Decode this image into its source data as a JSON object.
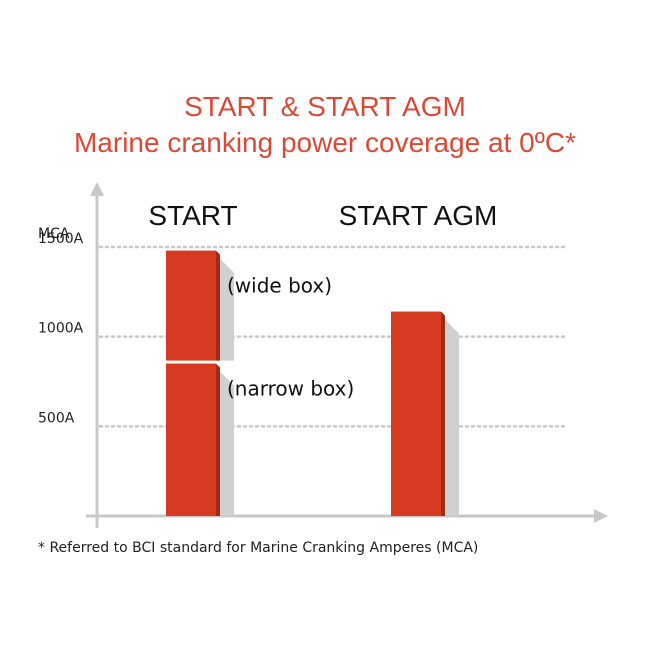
{
  "title_line1": "START & START AGM",
  "title_line2": "Marine cranking power coverage at 0ºC*",
  "footnote": "* Referred to BCI standard for Marine Cranking Amperes (MCA)",
  "colors": {
    "title": "#d94a36",
    "bar": "#d63a20",
    "axis": "#c8c8c8",
    "grid": "#c8c8c8"
  },
  "chart_data": {
    "type": "bar",
    "categories": [
      "START",
      "START AGM"
    ],
    "ylabel": "MCA",
    "ylim": [
      0,
      1650
    ],
    "y_ticks": [
      {
        "value": 500,
        "label": "500A"
      },
      {
        "value": 1000,
        "label": "1000A"
      },
      {
        "value": 1500,
        "label": "1500A"
      }
    ],
    "grid": "dotted horizontal lines at ticks",
    "bars": [
      {
        "category": "START",
        "segments": [
          {
            "from": 0,
            "to": 850,
            "label": "(narrow box)"
          },
          {
            "from": 850,
            "to": 1480,
            "label": "(wide box)"
          }
        ]
      },
      {
        "category": "START AGM",
        "segments": [
          {
            "from": 0,
            "to": 1140,
            "label": ""
          }
        ]
      }
    ]
  }
}
